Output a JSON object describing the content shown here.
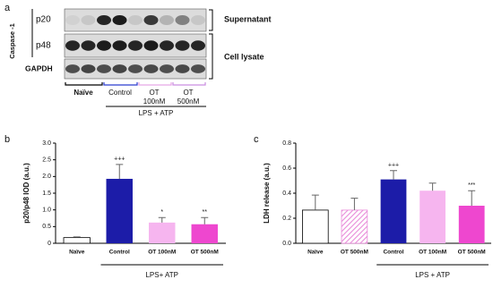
{
  "blot": {
    "panel": "a",
    "protein": "Caspase -1",
    "rows": [
      "p20",
      "p48",
      "GAPDH"
    ],
    "fractions": [
      "Supernatant",
      "Cell lysate"
    ],
    "lanes": [
      [
        "Naïve"
      ],
      [
        "Control"
      ],
      [
        "OT",
        "100nM"
      ],
      [
        "OT",
        "500nM"
      ]
    ],
    "treatment": "LPS + ATP"
  },
  "chart_data": [
    {
      "type": "bar",
      "panel": "b",
      "ylabel": "p20/p48 IOD (a.u.)",
      "categories": [
        "Naïve",
        "Control",
        "OT 100nM",
        "OT 500nM"
      ],
      "values": [
        0.17,
        1.93,
        0.62,
        0.57
      ],
      "errors": [
        0.02,
        0.43,
        0.15,
        0.2
      ],
      "colors": [
        "#ffffff",
        "#1c1ca8",
        "#f6b5ef",
        "#ee47cf"
      ],
      "hatch": [
        false,
        false,
        false,
        false
      ],
      "annotations": [
        null,
        "+++",
        "*",
        "**"
      ],
      "group_label": "LPS+ ATP",
      "ylim": [
        0,
        3
      ],
      "yticks": [
        0,
        0.5,
        {
          "value": 1,
          "label": "1.0"
        },
        1.5,
        {
          "value": 2,
          "label": "2.0"
        },
        2.5,
        {
          "value": 3,
          "label": "3.0"
        }
      ]
    },
    {
      "type": "bar",
      "panel": "c",
      "ylabel": "LDH release (a.u.)",
      "categories": [
        "Naïve",
        "OT 500nM",
        "Control",
        "OT 100nM",
        "OT 500nM"
      ],
      "values": [
        0.265,
        0.265,
        0.51,
        0.42,
        0.3
      ],
      "errors": [
        0.12,
        0.095,
        0.07,
        0.06,
        0.12
      ],
      "colors": [
        "#ffffff",
        "#e88bd9",
        "#1c1ca8",
        "#f6b5ef",
        "#ee47cf"
      ],
      "hatch": [
        false,
        true,
        false,
        false,
        false
      ],
      "annotations": [
        null,
        null,
        "+++",
        null,
        "***"
      ],
      "group_label": "LPS + ATP",
      "ylim": [
        0,
        0.8
      ],
      "yticks": [
        {
          "value": 0,
          "label": "0.0"
        },
        0.2,
        0.4,
        0.6,
        0.8
      ]
    }
  ]
}
